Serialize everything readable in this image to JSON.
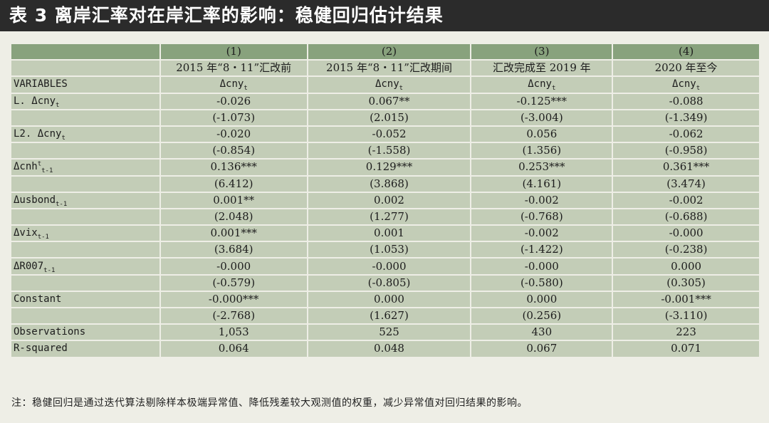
{
  "title": "表 3   离岸汇率对在岸汇率的影响：稳健回归估计结果",
  "columns": {
    "numbers": [
      "(1)",
      "(2)",
      "(3)",
      "(4)"
    ],
    "names": [
      "2015 年“8・11”汇改前",
      "2015 年“8・11”汇改期间",
      "汇改完成至 2019 年",
      "2020 年至今"
    ],
    "dep_label": "VARIABLES",
    "dep_var": {
      "base": "Δcny",
      "sub": "t"
    }
  },
  "rows": [
    {
      "var": {
        "base": "L. Δcny",
        "sub": "t",
        "sup": ""
      },
      "coef": [
        "-0.026",
        "0.067**",
        "-0.125***",
        "-0.088"
      ],
      "tstat": [
        "(-1.073)",
        "(2.015)",
        "(-3.004)",
        "(-1.349)"
      ]
    },
    {
      "var": {
        "base": "L2. Δcny",
        "sub": "t",
        "sup": ""
      },
      "coef": [
        "-0.020",
        "-0.052",
        "0.056",
        "-0.062"
      ],
      "tstat": [
        "(-0.854)",
        "(-1.558)",
        "(1.356)",
        "(-0.958)"
      ]
    },
    {
      "var": {
        "base": "Δcnh",
        "sub": "t-1",
        "sup": "t"
      },
      "coef": [
        "0.136***",
        "0.129***",
        "0.253***",
        "0.361***"
      ],
      "tstat": [
        "(6.412)",
        "(3.868)",
        "(4.161)",
        "(3.474)"
      ]
    },
    {
      "var": {
        "base": "Δusbond",
        "sub": "t-1",
        "sup": ""
      },
      "coef": [
        "0.001**",
        "0.002",
        "-0.002",
        "-0.002"
      ],
      "tstat": [
        "(2.048)",
        "(1.277)",
        "(-0.768)",
        "(-0.688)"
      ]
    },
    {
      "var": {
        "base": "Δvix",
        "sub": "t-1",
        "sup": ""
      },
      "coef": [
        "0.001***",
        "0.001",
        "-0.002",
        "-0.000"
      ],
      "tstat": [
        "(3.684)",
        "(1.053)",
        "(-1.422)",
        "(-0.238)"
      ]
    },
    {
      "var": {
        "base": "ΔR007",
        "sub": "t-1",
        "sup": ""
      },
      "coef": [
        "-0.000",
        "-0.000",
        "-0.000",
        "0.000"
      ],
      "tstat": [
        "(-0.579)",
        "(-0.805)",
        "(-0.580)",
        "(0.305)"
      ]
    },
    {
      "var": {
        "base": "Constant",
        "sub": "",
        "sup": ""
      },
      "coef": [
        "-0.000***",
        "0.000",
        "0.000",
        "-0.001***"
      ],
      "tstat": [
        "(-2.768)",
        "(1.627)",
        "(0.256)",
        "(-3.110)"
      ]
    }
  ],
  "stats": [
    {
      "label": "Observations",
      "values": [
        "1,053",
        "525",
        "430",
        "223"
      ]
    },
    {
      "label": "R-squared",
      "values": [
        "0.064",
        "0.048",
        "0.067",
        "0.071"
      ]
    }
  ],
  "footnote": "注：稳健回归是通过迭代算法剔除样本极端异常值、降低残差较大观测值的权重，减少异常值对回归结果的影响。",
  "colors": {
    "header_band": "#2b2b2b",
    "header_row": "#88a27d",
    "cell": "#c3cdb7",
    "background": "#eeeee6"
  }
}
